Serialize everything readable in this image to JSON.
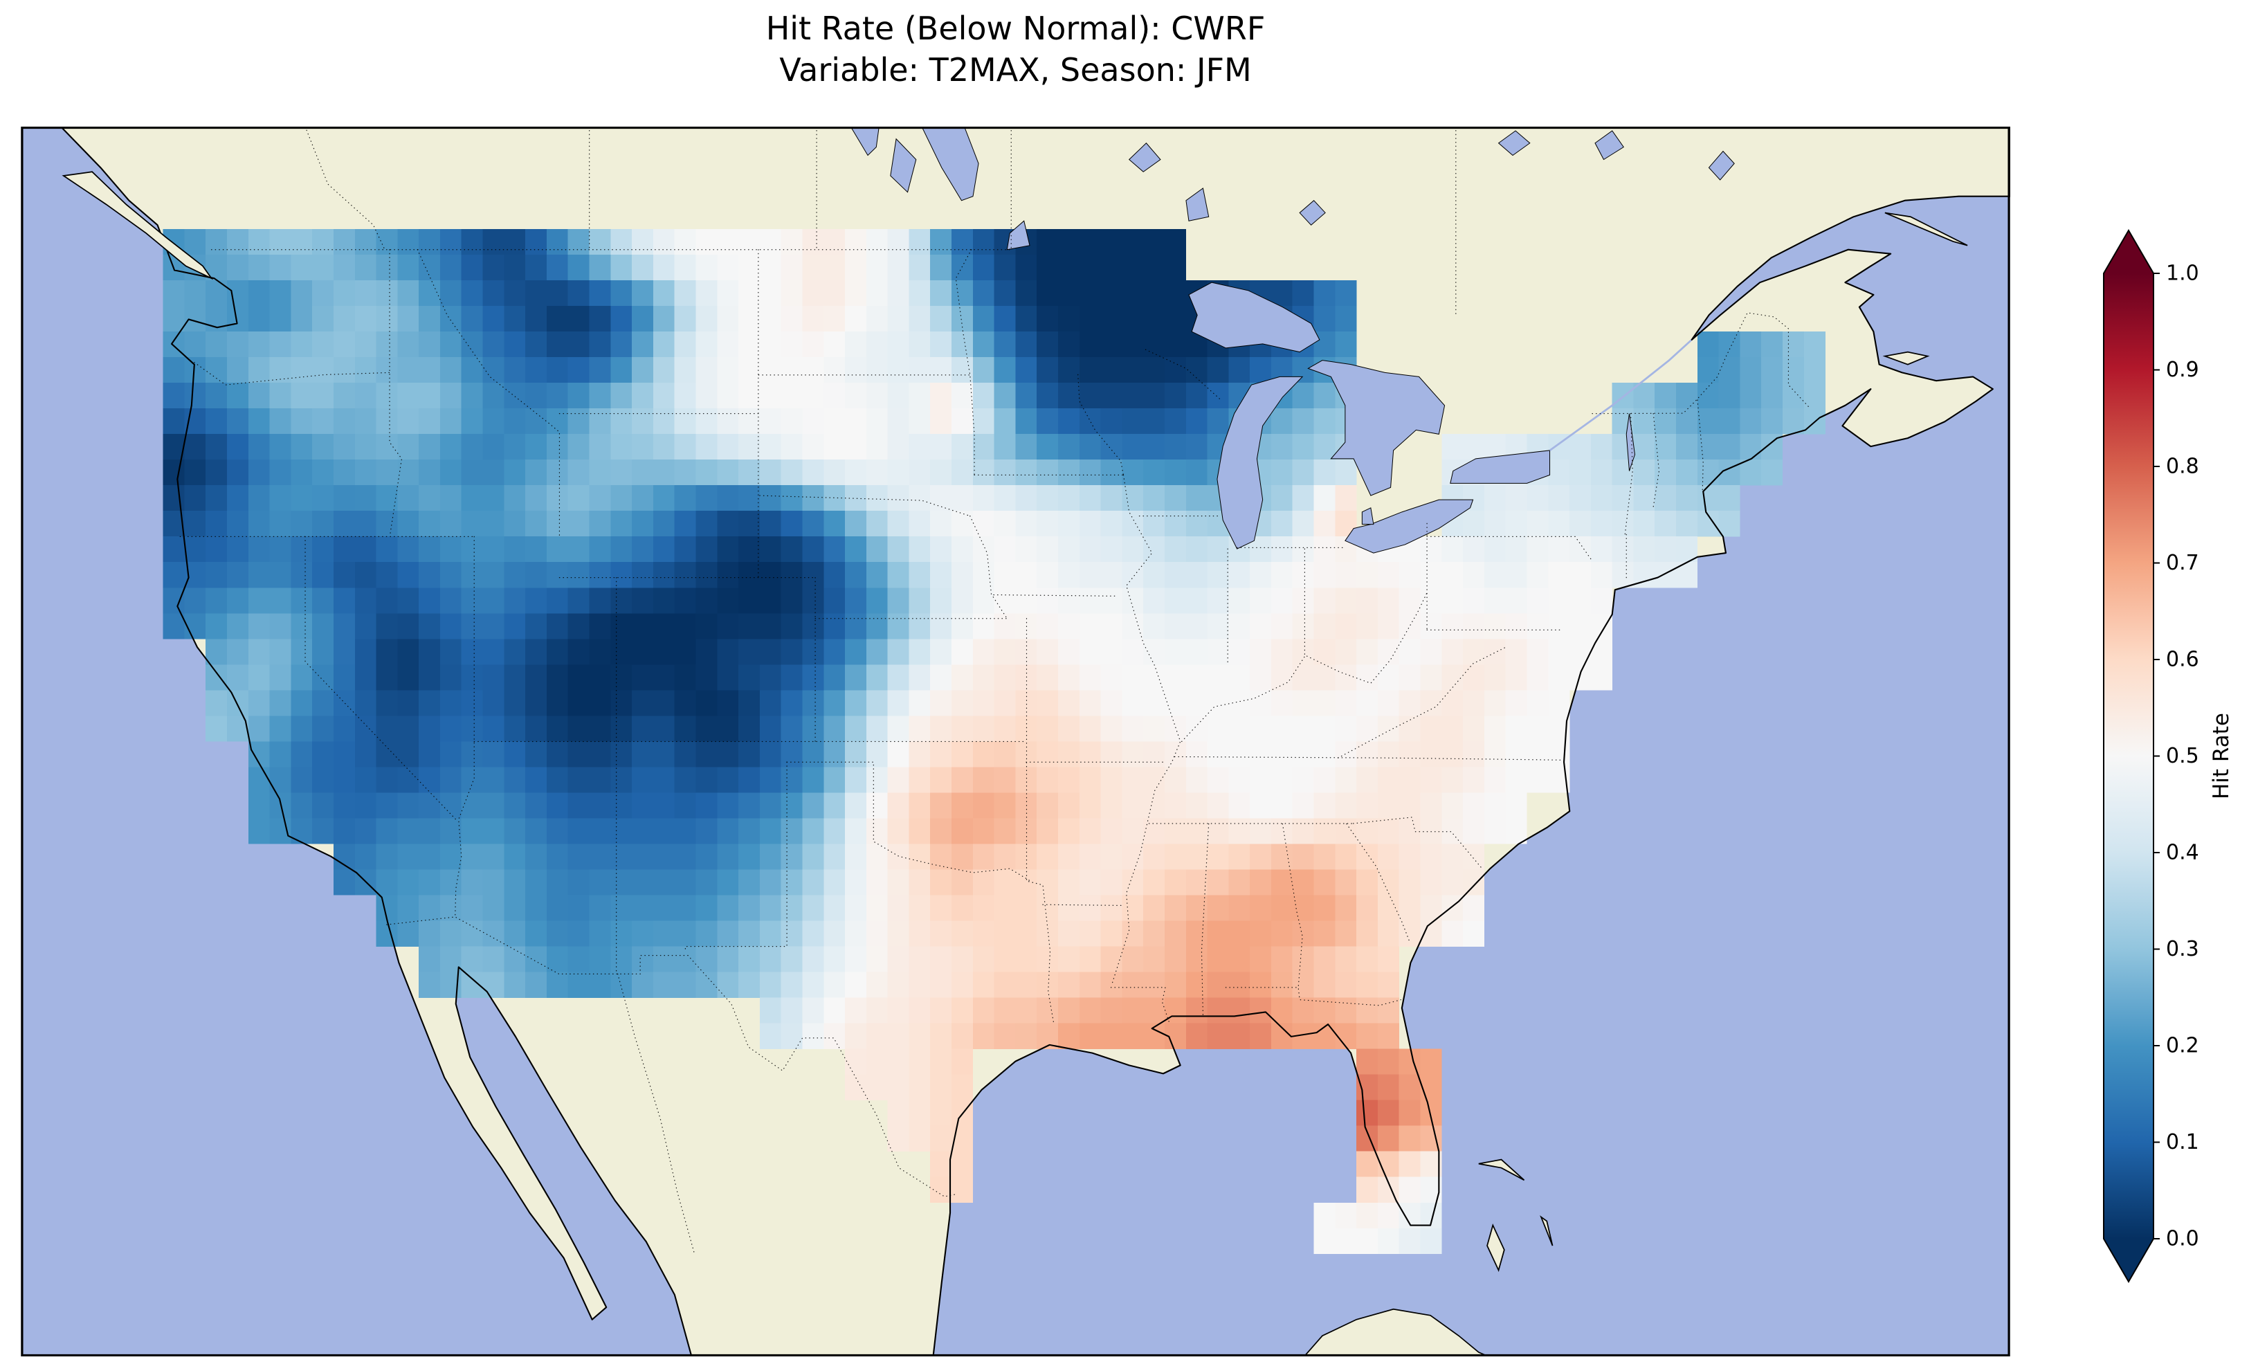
{
  "chart_data": {
    "type": "heatmap",
    "title": "Hit Rate (Below Normal): CWRF",
    "subtitle": "Variable: T2MAX, Season: JFM",
    "model": "CWRF",
    "variable": "T2MAX",
    "season": "JFM",
    "metric": "Hit Rate (Below Normal)",
    "colorbar": {
      "label": "Hit Rate",
      "ticks": [
        0.0,
        0.1,
        0.2,
        0.3,
        0.4,
        0.5,
        0.6,
        0.7,
        0.8,
        0.9,
        1.0
      ],
      "tick_labels": [
        "0.0",
        "0.1",
        "0.2",
        "0.3",
        "0.4",
        "0.5",
        "0.6",
        "0.7",
        "0.8",
        "0.9",
        "1.0"
      ],
      "vmin": 0.0,
      "vmax": 1.0,
      "extend": "both",
      "cmap": "RdBu_r",
      "cmap_anchors": [
        "#053061",
        "#2166ac",
        "#4393c3",
        "#92c5de",
        "#d1e5f0",
        "#f7f7f7",
        "#fddbc7",
        "#f4a582",
        "#d6604d",
        "#b2182b",
        "#67001f"
      ]
    },
    "map": {
      "region": "CONUS",
      "extent": {
        "lon_min": -130,
        "lon_max": -60,
        "lat_min": 22,
        "lat_max": 52
      },
      "colors": {
        "ocean": "#a4b5e3",
        "land": "#f0efd9",
        "lake": "#a4b5e3",
        "coastline": "#000000",
        "border": "#000000",
        "frame": "#000000"
      }
    },
    "grid": {
      "lon0": -125,
      "dlon": 1.5,
      "lat0": 49.5,
      "dlat": 1.25,
      "cols": 39,
      "rows": 20,
      "values": [
        [
          0.2,
          0.25,
          0.3,
          0.3,
          0.25,
          0.2,
          0.15,
          0.05,
          0.05,
          0.2,
          0.35,
          0.45,
          0.5,
          0.5,
          0.5,
          0.55,
          0.5,
          0.45,
          0.15,
          0.05,
          0,
          0,
          0,
          0,
          null,
          null,
          null,
          null,
          null,
          null,
          null,
          null,
          null,
          null,
          null,
          null,
          null,
          null,
          null
        ],
        [
          0.25,
          0.2,
          0.15,
          0.25,
          0.3,
          0.3,
          0.2,
          0.1,
          0.05,
          0,
          0.05,
          0.2,
          0.4,
          0.5,
          0.5,
          0.55,
          0.5,
          0.45,
          0.3,
          0.1,
          0,
          0,
          0,
          0,
          0,
          0.05,
          0.05,
          0.15,
          null,
          null,
          null,
          null,
          null,
          null,
          null,
          null,
          null,
          null,
          null
        ],
        [
          0.2,
          0.25,
          0.3,
          0.3,
          0.3,
          0.25,
          0.25,
          0.15,
          0.1,
          0.05,
          0.1,
          0.3,
          0.45,
          0.5,
          0.5,
          0.5,
          0.45,
          0.45,
          0.4,
          0.2,
          0.05,
          0,
          0,
          0,
          0,
          0.05,
          0.1,
          0.2,
          null,
          null,
          null,
          null,
          null,
          null,
          null,
          null,
          0.2,
          0.25,
          0.3
        ],
        [
          0.1,
          0.15,
          0.25,
          0.3,
          0.25,
          0.3,
          0.3,
          0.2,
          0.15,
          0.2,
          0.3,
          0.35,
          0.45,
          0.5,
          0.5,
          0.5,
          0.5,
          0.45,
          0.6,
          0.35,
          0.1,
          0.05,
          0.05,
          0.05,
          0.1,
          0.2,
          0.25,
          0.3,
          null,
          null,
          null,
          null,
          null,
          null,
          0.3,
          0.25,
          0.2,
          0.25,
          0.3
        ],
        [
          0,
          0.05,
          0.15,
          0.2,
          0.25,
          0.25,
          0.2,
          0.15,
          0.2,
          0.25,
          0.3,
          0.3,
          0.35,
          0.4,
          0.45,
          0.5,
          0.5,
          0.45,
          0.4,
          0.3,
          0.25,
          0.2,
          0.15,
          0.15,
          0.15,
          0.3,
          0.3,
          0.35,
          null,
          null,
          0.45,
          0.45,
          0.4,
          0.4,
          0.35,
          0.3,
          0.25,
          0.3,
          null
        ],
        [
          0.05,
          0.1,
          0.2,
          0.2,
          0.15,
          0.2,
          0.25,
          0.2,
          0.25,
          0.3,
          0.25,
          0.2,
          0.1,
          0.05,
          0.1,
          0.2,
          0.35,
          0.45,
          0.5,
          0.5,
          0.45,
          0.45,
          0.4,
          0.35,
          0.3,
          0.3,
          0.35,
          0.6,
          null,
          null,
          0.4,
          0.45,
          0.45,
          0.4,
          0.4,
          0.35,
          0.35,
          null,
          null
        ],
        [
          0.1,
          0.1,
          0.15,
          0.1,
          0.05,
          0.1,
          0.15,
          0.2,
          0.15,
          0.2,
          0.15,
          0.1,
          0.05,
          0,
          0,
          0.05,
          0.2,
          0.35,
          0.45,
          0.5,
          0.5,
          0.45,
          0.45,
          0.4,
          0.4,
          0.45,
          0.5,
          0.5,
          0.5,
          0.5,
          0.5,
          0.45,
          0.5,
          0.5,
          0.45,
          0.45,
          null,
          null,
          null
        ],
        [
          0.15,
          0.2,
          0.25,
          0.2,
          0.1,
          0.05,
          0.1,
          0.15,
          0.1,
          0.05,
          0,
          0,
          0,
          0,
          0,
          0.05,
          0.15,
          0.3,
          0.45,
          0.5,
          0.5,
          0.5,
          0.5,
          0.45,
          0.45,
          0.5,
          0.5,
          0.55,
          0.55,
          0.5,
          0.5,
          0.5,
          0.5,
          0.5,
          null,
          null,
          null,
          null,
          null
        ],
        [
          null,
          0.25,
          0.3,
          0.2,
          0.1,
          0,
          0.05,
          0.1,
          0.05,
          0,
          0,
          0,
          0,
          0.05,
          0.05,
          0.1,
          0.25,
          0.4,
          0.5,
          0.55,
          0.55,
          0.5,
          0.5,
          0.5,
          0.5,
          0.5,
          0.55,
          0.55,
          0.5,
          0.5,
          0.55,
          0.55,
          0.5,
          0.5,
          null,
          null,
          null,
          null,
          null
        ],
        [
          null,
          0.3,
          0.25,
          0.15,
          0.1,
          0.05,
          0.1,
          0.1,
          0.05,
          0,
          0,
          0.05,
          0,
          0,
          0.1,
          0.2,
          0.35,
          0.5,
          0.55,
          0.55,
          0.6,
          0.55,
          0.5,
          0.5,
          0.5,
          0.5,
          0.5,
          0.5,
          0.5,
          0.55,
          0.55,
          0.5,
          0.5,
          null,
          null,
          null,
          null,
          null,
          null
        ],
        [
          null,
          null,
          0.2,
          0.1,
          0.1,
          0.05,
          0.1,
          0.15,
          0.1,
          0.05,
          0.05,
          0.1,
          0.05,
          0.05,
          0.1,
          0.2,
          0.4,
          0.55,
          0.6,
          0.65,
          0.6,
          0.6,
          0.55,
          0.55,
          0.5,
          0.5,
          0.5,
          0.5,
          0.55,
          0.55,
          0.55,
          0.5,
          0.5,
          null,
          null,
          null,
          null,
          null,
          null
        ],
        [
          null,
          null,
          0.2,
          0.15,
          0.1,
          0.15,
          0.15,
          0.2,
          0.15,
          0.1,
          0.1,
          0.1,
          0.1,
          0.15,
          0.2,
          0.3,
          0.5,
          0.6,
          0.7,
          0.7,
          0.65,
          0.6,
          0.55,
          0.55,
          0.55,
          0.5,
          0.5,
          0.55,
          0.55,
          0.55,
          0.5,
          0.5,
          null,
          null,
          null,
          null,
          null,
          null,
          null
        ],
        [
          null,
          null,
          null,
          null,
          0.15,
          0.2,
          0.2,
          0.25,
          0.2,
          0.15,
          0.15,
          0.15,
          0.15,
          0.2,
          0.25,
          0.35,
          0.5,
          0.55,
          0.65,
          0.6,
          0.6,
          0.55,
          0.55,
          0.6,
          0.6,
          0.65,
          0.7,
          0.65,
          0.6,
          0.55,
          0.55,
          null,
          null,
          null,
          null,
          null,
          null,
          null,
          null
        ],
        [
          null,
          null,
          null,
          null,
          null,
          0.2,
          0.25,
          0.25,
          0.2,
          0.15,
          0.2,
          0.2,
          0.2,
          0.25,
          0.3,
          0.4,
          0.5,
          0.55,
          0.6,
          0.6,
          0.6,
          0.55,
          0.6,
          0.65,
          0.7,
          0.7,
          0.7,
          0.7,
          0.6,
          0.55,
          0.5,
          null,
          null,
          null,
          null,
          null,
          null,
          null,
          null
        ],
        [
          null,
          null,
          null,
          null,
          null,
          null,
          0.25,
          0.3,
          0.25,
          0.2,
          0.2,
          0.25,
          0.25,
          0.3,
          0.35,
          0.45,
          0.5,
          0.55,
          0.55,
          0.6,
          0.6,
          0.6,
          0.65,
          0.65,
          0.7,
          0.7,
          0.65,
          0.6,
          0.6,
          null,
          null,
          null,
          null,
          null,
          null,
          null,
          null,
          null,
          null
        ],
        [
          null,
          null,
          null,
          null,
          null,
          null,
          null,
          null,
          null,
          null,
          null,
          null,
          null,
          null,
          0.4,
          0.5,
          0.55,
          0.55,
          0.6,
          0.65,
          0.65,
          0.7,
          0.7,
          0.7,
          0.75,
          0.75,
          0.7,
          0.7,
          0.65,
          null,
          null,
          null,
          null,
          null,
          null,
          null,
          null,
          null,
          null
        ],
        [
          null,
          null,
          null,
          null,
          null,
          null,
          null,
          null,
          null,
          null,
          null,
          null,
          null,
          null,
          null,
          null,
          0.55,
          0.55,
          0.6,
          null,
          null,
          null,
          null,
          null,
          null,
          null,
          null,
          null,
          0.75,
          0.7,
          null,
          null,
          null,
          null,
          null,
          null,
          null,
          null,
          null
        ],
        [
          null,
          null,
          null,
          null,
          null,
          null,
          null,
          null,
          null,
          null,
          null,
          null,
          null,
          null,
          null,
          null,
          null,
          0.55,
          0.6,
          null,
          null,
          null,
          null,
          null,
          null,
          null,
          null,
          null,
          0.8,
          0.7,
          null,
          null,
          null,
          null,
          null,
          null,
          null,
          null,
          null
        ],
        [
          null,
          null,
          null,
          null,
          null,
          null,
          null,
          null,
          null,
          null,
          null,
          null,
          null,
          null,
          null,
          null,
          null,
          null,
          0.6,
          null,
          null,
          null,
          null,
          null,
          null,
          null,
          null,
          null,
          0.6,
          0.5,
          null,
          null,
          null,
          null,
          null,
          null,
          null,
          null,
          null
        ],
        [
          null,
          null,
          null,
          null,
          null,
          null,
          null,
          null,
          null,
          null,
          null,
          null,
          null,
          null,
          null,
          null,
          null,
          null,
          null,
          null,
          null,
          null,
          null,
          null,
          null,
          null,
          null,
          0.5,
          0.5,
          0.45,
          null,
          null,
          null,
          null,
          null,
          null,
          null,
          null,
          null
        ]
      ]
    }
  }
}
